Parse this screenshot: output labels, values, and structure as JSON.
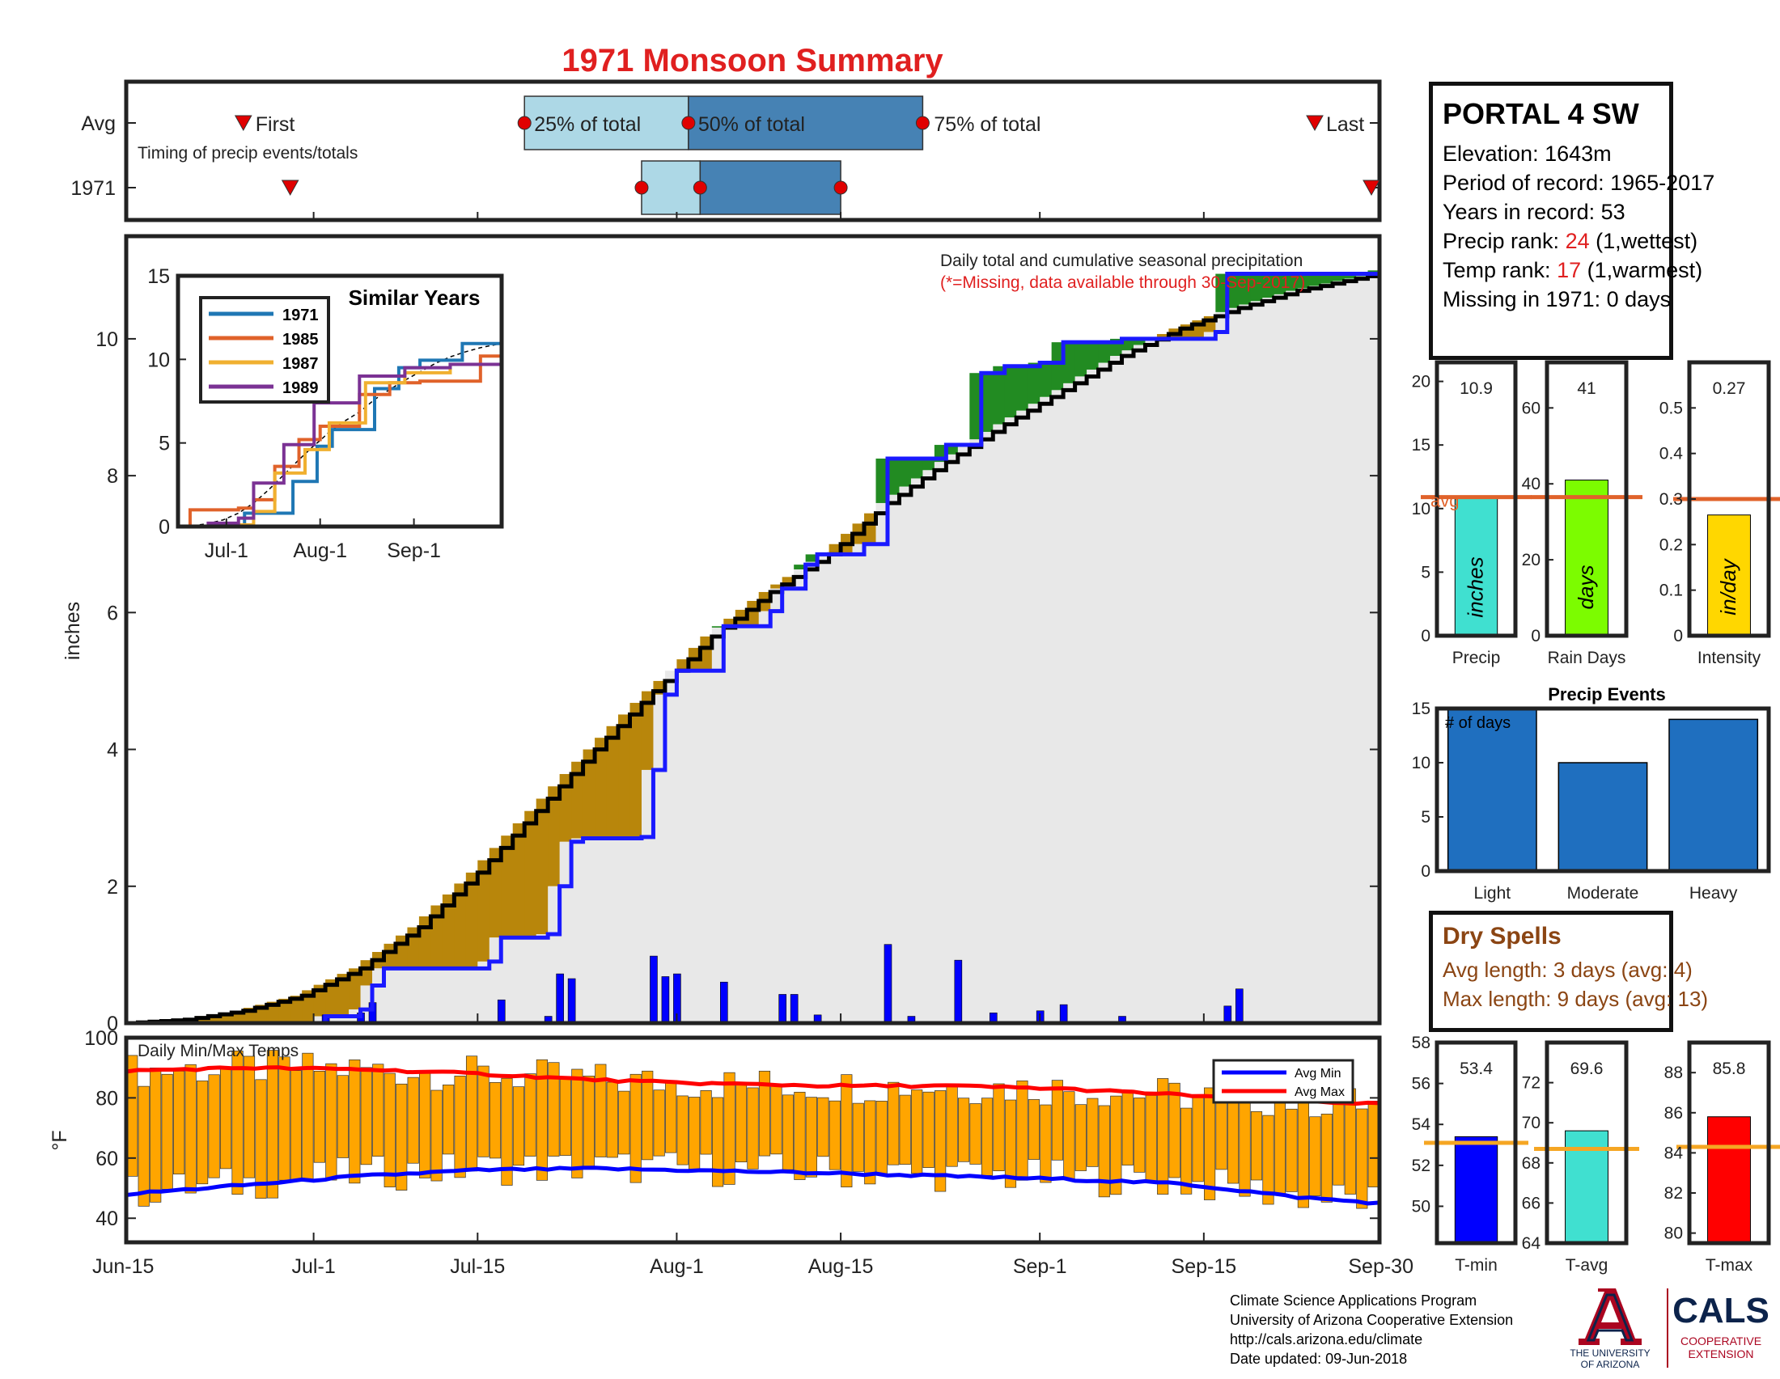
{
  "title": "1971 Monsoon Summary",
  "colors": {
    "title": "#e02020",
    "light_blue": "#add8e6",
    "dark_blue": "#4682b4",
    "above": "#228b22",
    "below": "#b8860b",
    "cum_fill": "#e8e8e8",
    "daily_bar": "#0000ff",
    "temp_bar": "#ffa500",
    "avg_line": "#e0622a",
    "avg_min": "#0000ff",
    "avg_max": "#ff0000"
  },
  "station": {
    "name": "PORTAL 4 SW",
    "elevation": "Elevation: 1643m",
    "period": "Period of record: 1965-2017",
    "years": "Years in record: 53",
    "precip_rank_label": "Precip rank: ",
    "precip_rank_value": "24",
    "precip_rank_note": " (1,wettest)",
    "temp_rank_label": "Temp rank: ",
    "temp_rank_value": "17",
    "temp_rank_note": " (1,warmest)",
    "missing": "Missing in 1971: 0 days"
  },
  "dry_spells": {
    "title": "Dry Spells",
    "avg": "Avg length: 3 days (avg: 4)",
    "max": "Max length: 9 days (avg: 13)"
  },
  "credits": {
    "line1": "Climate Science Applications Program",
    "line2": "University of Arizona Cooperative Extension",
    "line3": "http://cals.arizona.edu/climate",
    "line4": " Date updated: 09-Jun-2018"
  },
  "logo": {
    "ua_top": "THE UNIVERSITY",
    "ua_bottom": "OF ARIZONA",
    "cals": "CALS",
    "cals_sub1": "COOPERATIVE",
    "cals_sub2": "EXTENSION"
  },
  "chart_data": [
    {
      "id": "timing",
      "type": "table",
      "rows": [
        "Avg",
        "1971"
      ],
      "annotation": "Timing of precip events/totals",
      "labels": {
        "first": "First",
        "p25": "25% of total",
        "p50": "50% of total",
        "p75": "75% of total",
        "last": "Last"
      },
      "avg": {
        "first": 10,
        "p25": 34,
        "p50": 48,
        "p75": 68,
        "last": 110
      },
      "y1971": {
        "first": 14,
        "p25": 44,
        "p50": 49,
        "p75": 61,
        "last": 107
      }
    },
    {
      "id": "cumulative",
      "type": "area",
      "annotation1": "Daily total and cumulative seasonal precipitation",
      "annotation2": "(*=Missing, data available through 30-Sep-2017)",
      "ylabel": "inches",
      "ylim": [
        0,
        11.5
      ],
      "yticks": [
        0,
        2,
        4,
        6,
        8,
        10
      ],
      "xlim": [
        0,
        107
      ],
      "xticks": [
        {
          "d": 0,
          "label": "Jun-15"
        },
        {
          "d": 16,
          "label": "Jul-1"
        },
        {
          "d": 30,
          "label": "Jul-15"
        },
        {
          "d": 47,
          "label": "Aug-1"
        },
        {
          "d": 61,
          "label": "Aug-15"
        },
        {
          "d": 78,
          "label": "Sep-1"
        },
        {
          "d": 92,
          "label": "Sep-15"
        },
        {
          "d": 107,
          "label": "Sep-30"
        }
      ],
      "avg_cumulative": [
        [
          0,
          0
        ],
        [
          5,
          0.05
        ],
        [
          10,
          0.18
        ],
        [
          15,
          0.4
        ],
        [
          20,
          0.8
        ],
        [
          25,
          1.4
        ],
        [
          30,
          2.2
        ],
        [
          35,
          3.1
        ],
        [
          40,
          4.0
        ],
        [
          45,
          4.85
        ],
        [
          47,
          5.15
        ],
        [
          50,
          5.65
        ],
        [
          55,
          6.3
        ],
        [
          60,
          6.85
        ],
        [
          65,
          7.6
        ],
        [
          70,
          8.2
        ],
        [
          75,
          8.75
        ],
        [
          80,
          9.25
        ],
        [
          85,
          9.75
        ],
        [
          90,
          10.15
        ],
        [
          95,
          10.45
        ],
        [
          100,
          10.7
        ],
        [
          107,
          10.95
        ]
      ],
      "y1971_cumulative": [
        [
          0,
          0
        ],
        [
          16,
          0
        ],
        [
          17,
          0.1
        ],
        [
          20,
          0.2
        ],
        [
          21,
          0.55
        ],
        [
          22,
          0.8
        ],
        [
          31,
          0.9
        ],
        [
          32,
          1.25
        ],
        [
          36,
          1.3
        ],
        [
          37,
          2.0
        ],
        [
          38,
          2.65
        ],
        [
          39,
          2.7
        ],
        [
          44,
          2.72
        ],
        [
          45,
          3.7
        ],
        [
          46,
          4.8
        ],
        [
          47,
          5.15
        ],
        [
          51,
          5.8
        ],
        [
          55,
          6.02
        ],
        [
          56,
          6.35
        ],
        [
          58,
          6.7
        ],
        [
          59,
          6.85
        ],
        [
          63,
          7.0
        ],
        [
          65,
          8.25
        ],
        [
          70,
          8.45
        ],
        [
          73,
          9.5
        ],
        [
          75,
          9.6
        ],
        [
          78,
          9.65
        ],
        [
          80,
          9.95
        ],
        [
          85,
          10.0
        ],
        [
          93,
          10.1
        ],
        [
          94,
          10.95
        ],
        [
          107,
          11.0
        ]
      ],
      "daily": [
        [
          17,
          0.12
        ],
        [
          20,
          0.15
        ],
        [
          21,
          0.3
        ],
        [
          32,
          0.34
        ],
        [
          36,
          0.1
        ],
        [
          37,
          0.72
        ],
        [
          38,
          0.65
        ],
        [
          45,
          0.98
        ],
        [
          46,
          0.68
        ],
        [
          47,
          0.72
        ],
        [
          51,
          0.6
        ],
        [
          56,
          0.42
        ],
        [
          57,
          0.42
        ],
        [
          59,
          0.12
        ],
        [
          65,
          1.15
        ],
        [
          67,
          0.1
        ],
        [
          71,
          0.92
        ],
        [
          74,
          0.15
        ],
        [
          78,
          0.18
        ],
        [
          80,
          0.27
        ],
        [
          85,
          0.1
        ],
        [
          94,
          0.25
        ],
        [
          95,
          0.5
        ]
      ]
    },
    {
      "id": "similar",
      "type": "line",
      "title": "Similar Years",
      "ylim": [
        0,
        15
      ],
      "yticks": [
        0,
        5,
        10,
        15
      ],
      "xticks": [
        {
          "d": 16,
          "label": "Jul-1"
        },
        {
          "d": 47,
          "label": "Aug-1"
        },
        {
          "d": 78,
          "label": "Sep-1"
        }
      ],
      "series": [
        {
          "name": "1971",
          "color": "#1f77b4",
          "values": [
            [
              0,
              0
            ],
            [
              16,
              0
            ],
            [
              22,
              0.8
            ],
            [
              38,
              2.7
            ],
            [
              46,
              4.8
            ],
            [
              51,
              5.8
            ],
            [
              65,
              8.25
            ],
            [
              73,
              9.5
            ],
            [
              80,
              9.95
            ],
            [
              94,
              10.95
            ],
            [
              107,
              11.0
            ]
          ]
        },
        {
          "name": "1985",
          "color": "#e0622a",
          "values": [
            [
              0,
              0
            ],
            [
              4,
              1.0
            ],
            [
              20,
              1.1
            ],
            [
              25,
              1.6
            ],
            [
              32,
              3.6
            ],
            [
              40,
              5.2
            ],
            [
              47,
              6.0
            ],
            [
              60,
              7.9
            ],
            [
              70,
              8.6
            ],
            [
              80,
              8.7
            ],
            [
              100,
              10.2
            ],
            [
              106,
              10.2
            ],
            [
              107,
              11.2
            ]
          ]
        },
        {
          "name": "1987",
          "color": "#f0b030",
          "values": [
            [
              0,
              0
            ],
            [
              15,
              0.1
            ],
            [
              25,
              0.9
            ],
            [
              32,
              3.2
            ],
            [
              42,
              4.6
            ],
            [
              50,
              6.2
            ],
            [
              62,
              8.6
            ],
            [
              75,
              9.2
            ],
            [
              90,
              9.7
            ],
            [
              107,
              10.1
            ]
          ]
        },
        {
          "name": "1989",
          "color": "#7b3294",
          "values": [
            [
              0,
              0
            ],
            [
              10,
              0.2
            ],
            [
              20,
              0.5
            ],
            [
              25,
              2.6
            ],
            [
              35,
              4.9
            ],
            [
              45,
              7.4
            ],
            [
              60,
              9.0
            ],
            [
              75,
              9.5
            ],
            [
              90,
              9.7
            ],
            [
              107,
              9.8
            ]
          ]
        }
      ]
    },
    {
      "id": "temps",
      "type": "bar",
      "title": "Daily Min/Max Temps",
      "ylabel": "°F",
      "ylim": [
        32,
        100
      ],
      "yticks": [
        40,
        60,
        80,
        100
      ],
      "legend": [
        "Avg Min",
        "Avg Max"
      ],
      "avg_min": [
        [
          0,
          48
        ],
        [
          10,
          51
        ],
        [
          20,
          54
        ],
        [
          30,
          56
        ],
        [
          40,
          56.5
        ],
        [
          47,
          56
        ],
        [
          60,
          55
        ],
        [
          70,
          54
        ],
        [
          80,
          53
        ],
        [
          90,
          51.5
        ],
        [
          100,
          47
        ],
        [
          107,
          45
        ]
      ],
      "avg_max": [
        [
          0,
          89
        ],
        [
          10,
          90
        ],
        [
          20,
          89.5
        ],
        [
          30,
          88
        ],
        [
          40,
          86
        ],
        [
          47,
          85
        ],
        [
          60,
          84
        ],
        [
          70,
          84
        ],
        [
          80,
          83
        ],
        [
          90,
          81
        ],
        [
          100,
          79
        ],
        [
          107,
          78
        ]
      ]
    },
    {
      "id": "precip_avg",
      "type": "bar",
      "panels": [
        {
          "label": "Precip",
          "unit": "inches",
          "value": 10.9,
          "value_label": "10.9",
          "avg": 10.9,
          "avg_label": "avg",
          "ylim": [
            0,
            21.5
          ],
          "yticks": [
            0,
            5,
            10,
            15,
            20
          ],
          "color": "#40e0d0"
        },
        {
          "label": "Rain Days",
          "unit": "days",
          "value": 41,
          "value_label": "41",
          "avg": 36.5,
          "ylim": [
            0,
            72
          ],
          "yticks": [
            0,
            20,
            40,
            60
          ],
          "color": "#7cfc00"
        },
        {
          "label": "Intensity",
          "unit": "in/day",
          "value": 0.265,
          "value_label": "0.27",
          "avg": 0.3,
          "ylim": [
            0,
            0.6
          ],
          "yticks": [
            0,
            0.1,
            0.2,
            0.3,
            0.4,
            0.5
          ],
          "ytick_labels": [
            "0",
            "0.1",
            "0.2",
            "0.3",
            "0.4",
            "0.5"
          ],
          "color": "#ffd700"
        }
      ]
    },
    {
      "id": "events",
      "type": "bar",
      "title": "Precip Events",
      "annotation": "# of days",
      "categories": [
        "Light",
        "Moderate",
        "Heavy"
      ],
      "values": [
        15,
        10,
        14
      ],
      "ylim": [
        0,
        15
      ],
      "yticks": [
        0,
        5,
        10,
        15
      ],
      "color": "#1f6fbf"
    },
    {
      "id": "temp_avg",
      "type": "bar",
      "panels": [
        {
          "label": "T-min",
          "value": 53.4,
          "value_label": "53.4",
          "avg": 53.1,
          "ylim": [
            48.2,
            58
          ],
          "yticks": [
            50,
            52,
            54,
            56,
            58
          ],
          "color": "#0000ff"
        },
        {
          "label": "T-avg",
          "value": 69.6,
          "value_label": "69.6",
          "avg": 68.7,
          "ylim": [
            64,
            74
          ],
          "yticks": [
            64,
            66,
            68,
            70,
            72
          ],
          "color": "#40e0d0"
        },
        {
          "label": "T-max",
          "value": 85.8,
          "value_label": "85.8",
          "avg": 84.3,
          "ylim": [
            79.5,
            89.5
          ],
          "yticks": [
            80,
            82,
            84,
            86,
            88
          ],
          "color": "#ff0000"
        }
      ]
    }
  ]
}
